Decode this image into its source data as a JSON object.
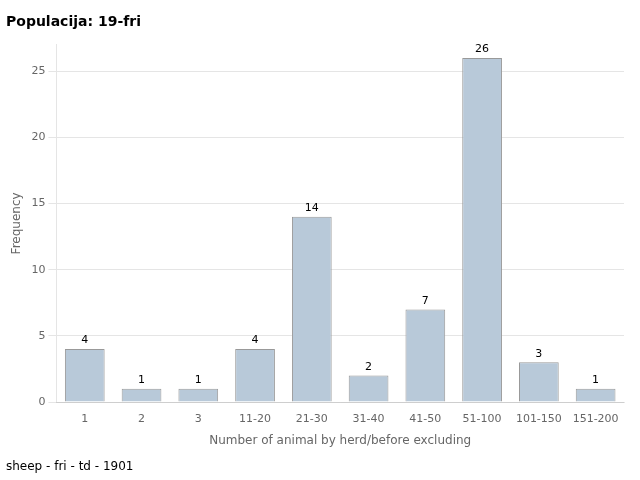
{
  "chart_data": {
    "type": "bar",
    "title": "Populacija: 19-fri",
    "footer": "sheep - fri - td - 1901",
    "xlabel": "Number of animal by herd/before excluding",
    "ylabel": "Frequency",
    "categories": [
      "1",
      "2",
      "3",
      "11-20",
      "21-30",
      "31-40",
      "41-50",
      "51-100",
      "101-150",
      "151-200"
    ],
    "values": [
      4,
      1,
      1,
      4,
      14,
      2,
      7,
      26,
      3,
      1
    ],
    "color": "#b8c9d9",
    "ylim": [
      0,
      27
    ],
    "yticks": [
      0,
      5,
      10,
      15,
      20,
      25
    ],
    "grid": true,
    "data_labels": true
  }
}
